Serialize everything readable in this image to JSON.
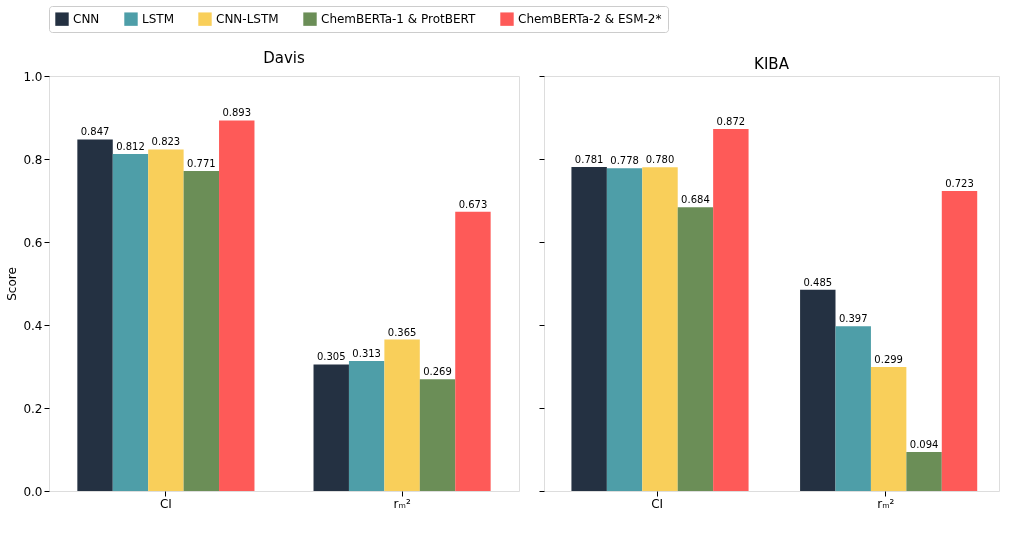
{
  "chart_data": [
    {
      "type": "bar",
      "title": "Davis",
      "ylabel": "Score",
      "categories": [
        "CI",
        "rₘ²"
      ],
      "ylim": [
        0,
        1.0
      ],
      "yticks": [
        {
          "value": 0,
          "label": "0.0"
        },
        0.2,
        0.4,
        0.6,
        0.8,
        {
          "value": 1,
          "label": "1.0"
        }
      ],
      "grid": false,
      "legend": "top",
      "series": [
        {
          "name": "CNN",
          "color": "#243142",
          "values": [
            0.847,
            0.305
          ],
          "value_labels": [
            "0.847",
            "0.305"
          ]
        },
        {
          "name": "LSTM",
          "color": "#4e9ea8",
          "values": [
            0.812,
            0.313
          ],
          "value_labels": [
            "0.812",
            "0.313"
          ]
        },
        {
          "name": "CNN-LSTM",
          "color": "#f9cf5a",
          "values": [
            0.823,
            0.365
          ],
          "value_labels": [
            "0.823",
            "0.365"
          ]
        },
        {
          "name": "ChemBERTa-1 & ProtBERT",
          "color": "#6b8e57",
          "values": [
            0.771,
            0.269
          ],
          "value_labels": [
            "0.771",
            "0.269"
          ]
        },
        {
          "name": "ChemBERTa-2 & ESM-2*",
          "color": "#fe5a58",
          "values": [
            0.893,
            0.673
          ],
          "value_labels": [
            "0.893",
            "0.673"
          ]
        }
      ]
    },
    {
      "type": "bar",
      "title": "KIBA",
      "categories": [
        "CI",
        "rₘ²"
      ],
      "ylim": [
        0,
        1.0
      ],
      "yticks": [
        {
          "value": 0,
          "label": null
        },
        {
          "value": 0.2,
          "label": null
        },
        {
          "value": 0.4,
          "label": null
        },
        {
          "value": 0.6,
          "label": null
        },
        {
          "value": 0.8,
          "label": null
        },
        {
          "value": 1,
          "label": null
        }
      ],
      "grid": false,
      "legend": false,
      "tick_labels": "x",
      "series": [
        {
          "name": "CNN",
          "color": "#243142",
          "values": [
            0.781,
            0.485
          ],
          "value_labels": [
            "0.781",
            "0.485"
          ]
        },
        {
          "name": "LSTM",
          "color": "#4e9ea8",
          "values": [
            0.778,
            0.397
          ],
          "value_labels": [
            "0.778",
            "0.397"
          ]
        },
        {
          "name": "CNN-LSTM",
          "color": "#f9cf5a",
          "values": [
            0.78,
            0.299
          ],
          "value_labels": [
            "0.780",
            "0.299"
          ]
        },
        {
          "name": "ChemBERTa-1 & ProtBERT",
          "color": "#6b8e57",
          "values": [
            0.684,
            0.094
          ],
          "value_labels": [
            "0.684",
            "0.094"
          ]
        },
        {
          "name": "ChemBERTa-2 & ESM-2*",
          "color": "#fe5a58",
          "values": [
            0.872,
            0.723
          ],
          "value_labels": [
            "0.872",
            "0.723"
          ]
        }
      ]
    }
  ]
}
